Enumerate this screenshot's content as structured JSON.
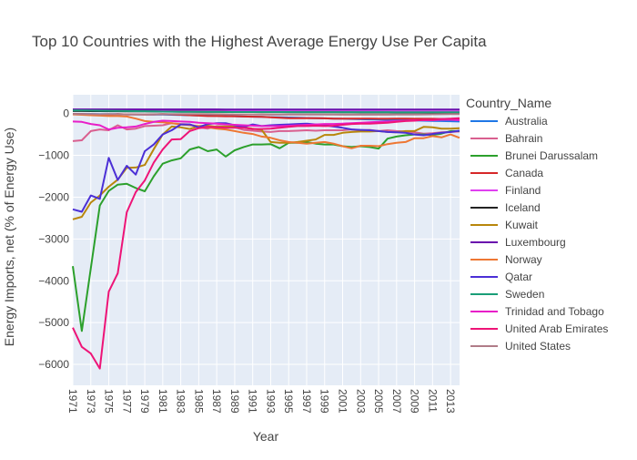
{
  "chart_data": {
    "type": "line",
    "title": "Top 10 Countries with the Highest Average Energy Use Per Capita",
    "xlabel": "Year",
    "ylabel": "Energy Imports, net (% of Energy Use)",
    "legend_title": "Country_Name",
    "legend_position": "right",
    "xlim": [
      1971,
      2014
    ],
    "ylim": [
      -6500,
      450
    ],
    "xticks": [
      1971,
      1973,
      1975,
      1977,
      1979,
      1981,
      1983,
      1985,
      1987,
      1989,
      1991,
      1993,
      1995,
      1997,
      1999,
      2001,
      2003,
      2005,
      2007,
      2009,
      2011,
      2013
    ],
    "yticks": [
      0,
      -1000,
      -2000,
      -3000,
      -4000,
      -5000,
      -6000
    ],
    "ytick_labels": [
      "0",
      "−1000",
      "−2000",
      "−3000",
      "−4000",
      "−5000",
      "−6000"
    ],
    "x": [
      1971,
      1972,
      1973,
      1974,
      1975,
      1976,
      1977,
      1978,
      1979,
      1980,
      1981,
      1982,
      1983,
      1984,
      1985,
      1986,
      1987,
      1988,
      1989,
      1990,
      1991,
      1992,
      1993,
      1994,
      1995,
      1996,
      1997,
      1998,
      1999,
      2000,
      2001,
      2002,
      2003,
      2004,
      2005,
      2006,
      2007,
      2008,
      2009,
      2010,
      2011,
      2012,
      2013,
      2014
    ],
    "series": [
      {
        "name": "Australia",
        "color": "#1f77e6",
        "values": [
          -10,
          -10,
          -10,
          -15,
          -15,
          -15,
          -20,
          -20,
          -20,
          -25,
          -25,
          -30,
          -35,
          -40,
          -45,
          -50,
          -55,
          -60,
          -65,
          -70,
          -75,
          -80,
          -85,
          -90,
          -95,
          -100,
          -105,
          -110,
          -115,
          -120,
          -125,
          -130,
          -135,
          -140,
          -145,
          -150,
          -155,
          -160,
          -165,
          -170,
          -175,
          -180,
          -185,
          -190
        ]
      },
      {
        "name": "Bahrain",
        "color": "#d95f8f",
        "values": [
          -660,
          -640,
          -420,
          -380,
          -400,
          -280,
          -380,
          -360,
          -300,
          -290,
          -280,
          -230,
          -250,
          -260,
          -330,
          -360,
          -300,
          -310,
          -330,
          -390,
          -410,
          -430,
          -440,
          -420,
          -420,
          -410,
          -400,
          -410,
          -400,
          -400,
          -400,
          -380,
          -400,
          -390,
          -420,
          -400,
          -420,
          -430,
          -450,
          -480,
          -470,
          -450,
          -440,
          -430
        ]
      },
      {
        "name": "Brunei Darussalam",
        "color": "#2ca02c",
        "values": [
          -3650,
          -5200,
          -3700,
          -2200,
          -1850,
          -1700,
          -1680,
          -1780,
          -1860,
          -1500,
          -1200,
          -1120,
          -1070,
          -860,
          -800,
          -900,
          -860,
          -1030,
          -880,
          -800,
          -740,
          -740,
          -730,
          -830,
          -700,
          -700,
          -680,
          -720,
          -740,
          -740,
          -780,
          -800,
          -780,
          -800,
          -840,
          -600,
          -550,
          -520,
          -500,
          -500,
          -510,
          -480,
          -420,
          -420
        ]
      },
      {
        "name": "Canada",
        "color": "#d62728",
        "values": [
          -10,
          -15,
          -20,
          -25,
          -20,
          -15,
          -20,
          -20,
          -25,
          -20,
          -15,
          -20,
          -30,
          -40,
          -50,
          -60,
          -60,
          -65,
          -65,
          -70,
          -75,
          -80,
          -90,
          -100,
          -110,
          -110,
          -110,
          -110,
          -115,
          -120,
          -120,
          -120,
          -120,
          -120,
          -125,
          -125,
          -120,
          -120,
          -125,
          -125,
          -125,
          -130,
          -130,
          -135
        ]
      },
      {
        "name": "Finland",
        "color": "#e040f0",
        "values": [
          75,
          70,
          70,
          68,
          68,
          68,
          66,
          66,
          65,
          65,
          64,
          62,
          60,
          58,
          58,
          56,
          56,
          55,
          55,
          55,
          55,
          54,
          54,
          53,
          53,
          52,
          52,
          52,
          52,
          52,
          52,
          52,
          52,
          52,
          52,
          50,
          50,
          50,
          50,
          50,
          50,
          50,
          50,
          50
        ]
      },
      {
        "name": "Iceland",
        "color": "#222222",
        "values": [
          60,
          60,
          58,
          58,
          56,
          56,
          54,
          54,
          52,
          50,
          48,
          46,
          45,
          44,
          42,
          40,
          40,
          38,
          37,
          36,
          35,
          34,
          34,
          33,
          32,
          32,
          32,
          32,
          30,
          30,
          28,
          28,
          26,
          26,
          25,
          25,
          24,
          24,
          22,
          22,
          20,
          20,
          20,
          20
        ]
      },
      {
        "name": "Kuwait",
        "color": "#b8860b",
        "values": [
          -2530,
          -2470,
          -2130,
          -1960,
          -1750,
          -1580,
          -1300,
          -1290,
          -1230,
          -850,
          -500,
          -310,
          -330,
          -370,
          -300,
          -290,
          -320,
          -310,
          -300,
          -330,
          -360,
          -390,
          -680,
          -700,
          -700,
          -680,
          -650,
          -620,
          -510,
          -510,
          -460,
          -440,
          -430,
          -430,
          -420,
          -440,
          -450,
          -420,
          -420,
          -320,
          -330,
          -360,
          -360,
          -350
        ]
      },
      {
        "name": "Luxembourg",
        "color": "#6a0dad",
        "values": [
          100,
          100,
          100,
          100,
          100,
          100,
          100,
          100,
          99,
          99,
          99,
          99,
          99,
          99,
          99,
          99,
          99,
          98,
          98,
          98,
          98,
          98,
          98,
          98,
          98,
          98,
          97,
          97,
          97,
          97,
          97,
          97,
          97,
          96,
          96,
          96,
          96,
          96,
          96,
          96,
          96,
          96,
          96,
          96
        ]
      },
      {
        "name": "Norway",
        "color": "#ee7733",
        "values": [
          -20,
          -30,
          -40,
          -50,
          -60,
          -60,
          -70,
          -120,
          -180,
          -200,
          -210,
          -230,
          -260,
          -280,
          -300,
          -330,
          -360,
          -380,
          -420,
          -460,
          -490,
          -550,
          -580,
          -640,
          -680,
          -700,
          -720,
          -700,
          -680,
          -720,
          -780,
          -830,
          -770,
          -770,
          -780,
          -730,
          -700,
          -680,
          -590,
          -590,
          -540,
          -570,
          -500,
          -580
        ]
      },
      {
        "name": "Qatar",
        "color": "#4b2fd6",
        "values": [
          -2290,
          -2350,
          -1960,
          -2040,
          -1060,
          -1590,
          -1250,
          -1460,
          -900,
          -740,
          -500,
          -400,
          -260,
          -260,
          -330,
          -250,
          -230,
          -230,
          -280,
          -320,
          -260,
          -300,
          -280,
          -270,
          -260,
          -250,
          -240,
          -260,
          -280,
          -310,
          -340,
          -380,
          -390,
          -400,
          -420,
          -440,
          -450,
          -460,
          -500,
          -520,
          -490,
          -460,
          -440,
          -410
        ]
      },
      {
        "name": "Sweden",
        "color": "#1a9e77",
        "values": [
          75,
          72,
          70,
          68,
          66,
          62,
          60,
          58,
          55,
          52,
          48,
          44,
          42,
          42,
          40,
          38,
          38,
          37,
          36,
          35,
          35,
          36,
          36,
          36,
          35,
          34,
          34,
          33,
          33,
          33,
          33,
          33,
          33,
          33,
          33,
          33,
          32,
          32,
          32,
          32,
          32,
          31,
          31,
          31
        ]
      },
      {
        "name": "Trinidad and Tobago",
        "color": "#e81ec8",
        "values": [
          -190,
          -200,
          -250,
          -280,
          -380,
          -340,
          -330,
          -310,
          -250,
          -200,
          -170,
          -180,
          -190,
          -200,
          -220,
          -230,
          -240,
          -260,
          -270,
          -280,
          -290,
          -300,
          -300,
          -300,
          -290,
          -280,
          -270,
          -260,
          -250,
          -250,
          -240,
          -230,
          -220,
          -210,
          -200,
          -190,
          -180,
          -170,
          -160,
          -160,
          -160,
          -150,
          -150,
          -160
        ]
      },
      {
        "name": "United Arab Emirates",
        "color": "#ee1477",
        "values": [
          -5120,
          -5580,
          -5740,
          -6100,
          -4260,
          -3820,
          -2360,
          -1880,
          -1600,
          -1170,
          -860,
          -620,
          -610,
          -420,
          -350,
          -320,
          -330,
          -340,
          -340,
          -340,
          -370,
          -370,
          -360,
          -340,
          -320,
          -300,
          -300,
          -290,
          -300,
          -290,
          -270,
          -250,
          -240,
          -240,
          -230,
          -220,
          -200,
          -180,
          -170,
          -150,
          -150,
          -130,
          -120,
          -110
        ]
      },
      {
        "name": "United States",
        "color": "#b07c88",
        "values": [
          -10,
          -12,
          -15,
          -18,
          -15,
          -18,
          -20,
          -20,
          -18,
          -16,
          -14,
          -12,
          -12,
          -12,
          -12,
          -14,
          -16,
          -18,
          -20,
          -20,
          -20,
          -20,
          -22,
          -22,
          -24,
          -24,
          -25,
          -25,
          -26,
          -26,
          -28,
          -28,
          -28,
          -28,
          -28,
          -28,
          -26,
          -24,
          -22,
          -20,
          -18,
          -16,
          -14,
          -12
        ]
      }
    ]
  }
}
